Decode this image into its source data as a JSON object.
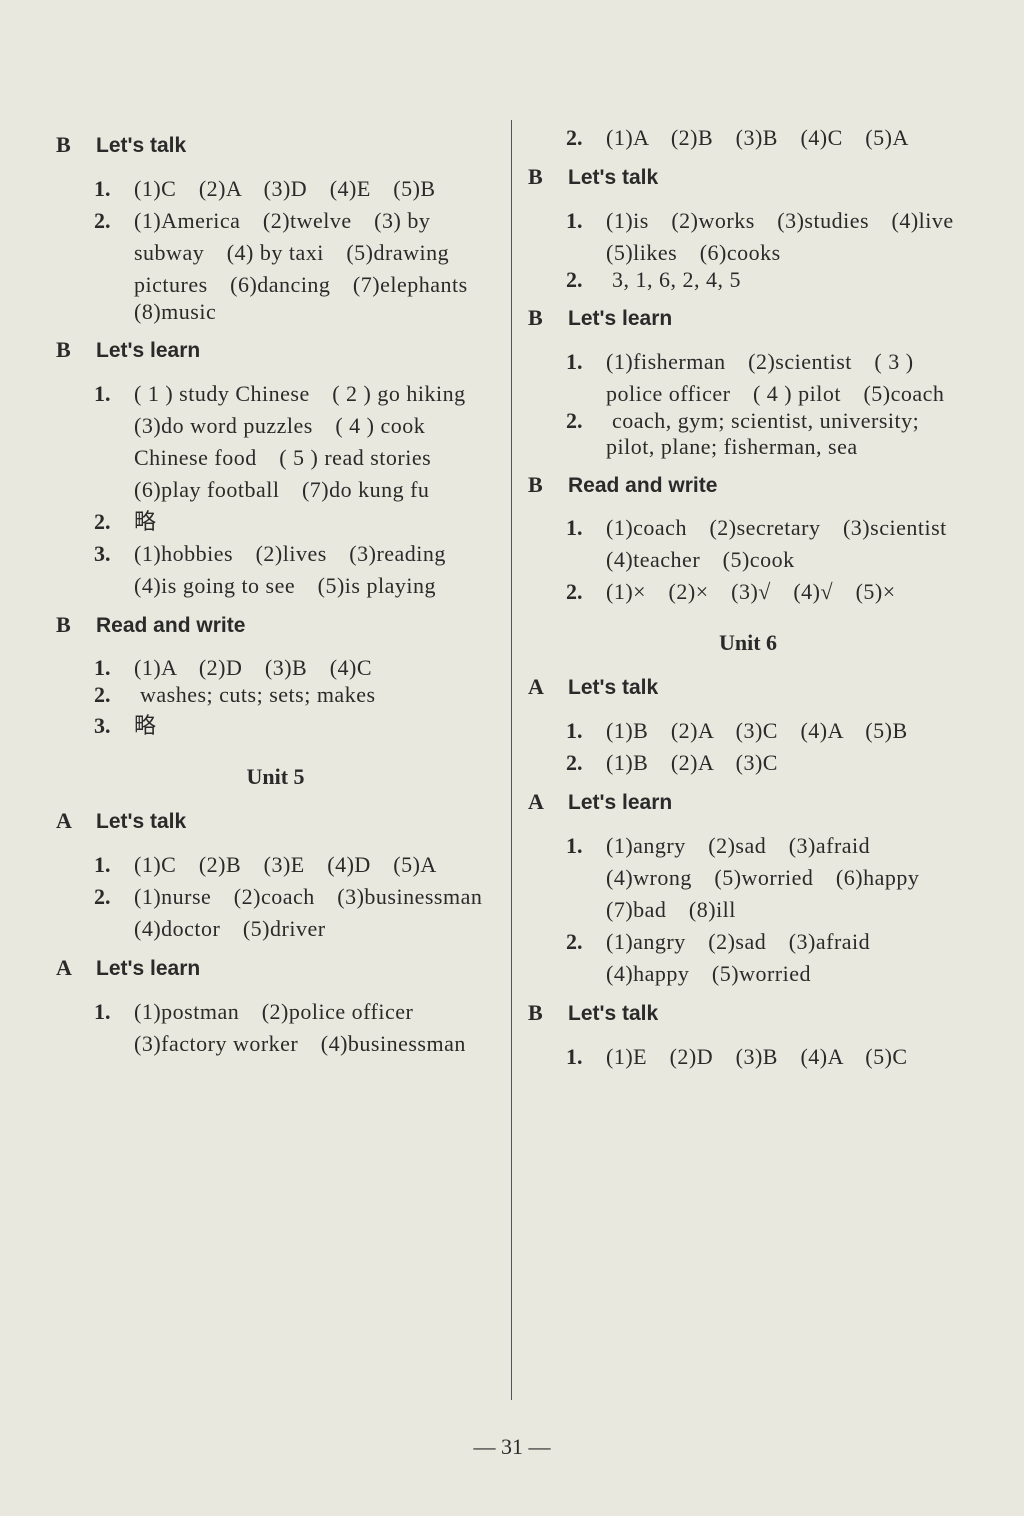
{
  "left": {
    "sections": [
      {
        "label": "B",
        "title": "Let's talk",
        "items": [
          {
            "n": "1.",
            "text": "(1)C　(2)A　(3)D　(4)E　(5)B"
          },
          {
            "n": "2.",
            "text": "(1)America　(2)twelve　(3) by subway　(4) by taxi　(5)drawing pictures　(6)dancing　(7)elephants　(8)music"
          }
        ]
      },
      {
        "label": "B",
        "title": "Let's learn",
        "items": [
          {
            "n": "1.",
            "text": "( 1 ) study Chinese　( 2 ) go hiking　(3)do word puzzles　( 4 ) cook Chinese food　( 5 ) read stories　(6)play football　(7)do kung fu"
          },
          {
            "n": "2.",
            "text": "略"
          },
          {
            "n": "3.",
            "text": "(1)hobbies　(2)lives　(3)reading　(4)is going to see　(5)is playing"
          }
        ]
      },
      {
        "label": "B",
        "title": "Read and write",
        "items": [
          {
            "n": "1.",
            "text": "(1)A　(2)D　(3)B　(4)C"
          },
          {
            "n": "2.",
            "text": " washes; cuts; sets; makes"
          },
          {
            "n": "3.",
            "text": "略"
          }
        ]
      }
    ],
    "unit5_head": "Unit 5",
    "unit5": [
      {
        "label": "A",
        "title": "Let's talk",
        "items": [
          {
            "n": "1.",
            "text": "(1)C　(2)B　(3)E　(4)D　(5)A",
            "outdent": true
          },
          {
            "n": "2.",
            "text": "(1)nurse　(2)coach　(3)businessman　(4)doctor　(5)driver"
          }
        ]
      },
      {
        "label": "A",
        "title": "Let's learn",
        "items": [
          {
            "n": "1.",
            "text": "(1)postman　(2)police officer　(3)factory worker　(4)businessman"
          }
        ]
      }
    ]
  },
  "right": {
    "pre": [
      {
        "n": "2.",
        "text": "(1)A　(2)B　(3)B　(4)C　(5)A"
      }
    ],
    "sections": [
      {
        "label": "B",
        "title": "Let's talk",
        "items": [
          {
            "n": "1.",
            "text": "(1)is　(2)works　(3)studies　(4)live　(5)likes　(6)cooks"
          },
          {
            "n": "2.",
            "text": " 3, 1, 6, 2, 4, 5"
          }
        ]
      },
      {
        "label": "B",
        "title": "Let's learn",
        "items": [
          {
            "n": "1.",
            "text": "(1)fisherman　(2)scientist　( 3 ) police officer　( 4 ) pilot　(5)coach"
          },
          {
            "n": "2.",
            "text": " coach, gym; scientist, university; pilot, plane; fisherman, sea"
          }
        ]
      },
      {
        "label": "B",
        "title": "Read and write",
        "items": [
          {
            "n": "1.",
            "text": "(1)coach　(2)secretary　(3)scientist　(4)teacher　(5)cook"
          },
          {
            "n": "2.",
            "text": "(1)×　(2)×　(3)√　(4)√　(5)×"
          }
        ]
      }
    ],
    "unit6_head": "Unit 6",
    "unit6": [
      {
        "label": "A",
        "title": "Let's talk",
        "items": [
          {
            "n": "1.",
            "text": "(1)B　(2)A　(3)C　(4)A　(5)B"
          },
          {
            "n": "2.",
            "text": "(1)B　(2)A　(3)C"
          }
        ]
      },
      {
        "label": "A",
        "title": "Let's learn",
        "items": [
          {
            "n": "1.",
            "text": "(1)angry　(2)sad　(3)afraid　(4)wrong　(5)worried　(6)happy　(7)bad　(8)ill"
          },
          {
            "n": "2.",
            "text": "(1)angry　(2)sad　(3)afraid　(4)happy　(5)worried"
          }
        ]
      },
      {
        "label": "B",
        "title": "Let's talk",
        "items": [
          {
            "n": "1.",
            "text": "(1)E　(2)D　(3)B　(4)A　(5)C"
          }
        ]
      }
    ]
  },
  "page_number": "— 31 —"
}
